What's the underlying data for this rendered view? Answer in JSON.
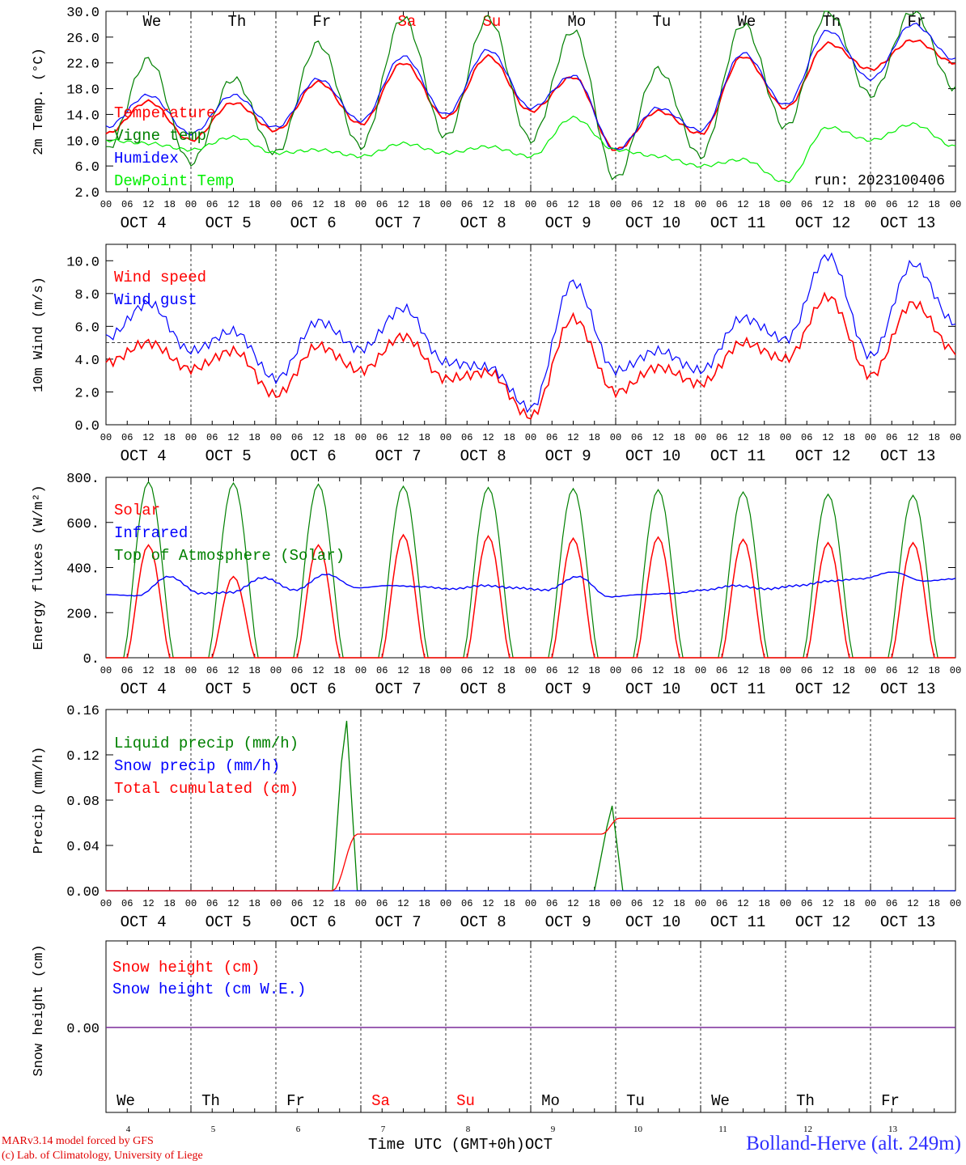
{
  "chart_data": [
    {
      "type": "line",
      "ylabel": "2m Temp. (°C)",
      "ylim": [
        2.0,
        30.0
      ],
      "yticks": [
        "2.0",
        "6.0",
        "10.0",
        "14.0",
        "18.0",
        "22.0",
        "26.0",
        "30.0"
      ],
      "run_label": "run: 2023100406",
      "x_hours": [
        0,
        12,
        24,
        36,
        48,
        60,
        72,
        84,
        96,
        108,
        120,
        132,
        144,
        156,
        168,
        180,
        192,
        204,
        216,
        228,
        240
      ],
      "series": [
        {
          "name": "Temperature",
          "color": "#ff0000",
          "values": [
            11.0,
            16.0,
            10.0,
            15.8,
            11.5,
            19.0,
            12.5,
            22.0,
            13.5,
            23.0,
            14.5,
            19.8,
            8.5,
            14.5,
            11.0,
            23.0,
            15.0,
            25.0,
            21.0,
            25.5,
            22.0
          ]
        },
        {
          "name": "Vigne temp",
          "color": "#008000",
          "values": [
            8.5,
            22.5,
            6.5,
            19.5,
            8.0,
            25.0,
            9.0,
            29.0,
            10.5,
            29.0,
            10.0,
            27.0,
            4.0,
            21.0,
            7.5,
            28.0,
            12.0,
            30.0,
            17.0,
            30.0,
            18.0
          ]
        },
        {
          "name": "Humidex",
          "color": "#0000ff",
          "values": [
            12.0,
            17.0,
            11.0,
            17.0,
            12.0,
            19.5,
            13.0,
            23.0,
            14.0,
            24.0,
            15.0,
            20.0,
            8.5,
            15.0,
            11.5,
            23.5,
            15.5,
            27.0,
            19.5,
            28.0,
            22.5
          ]
        },
        {
          "name": "DewPoint Temp",
          "color": "#00ee00",
          "values": [
            10.0,
            9.5,
            8.5,
            10.5,
            8.0,
            8.5,
            7.5,
            9.5,
            8.0,
            9.0,
            7.5,
            13.5,
            8.5,
            7.5,
            6.0,
            7.0,
            3.5,
            12.0,
            10.0,
            12.5,
            9.0
          ]
        }
      ]
    },
    {
      "type": "line",
      "ylabel": "10m Wind (m/s)",
      "ylim": [
        0.0,
        11.0
      ],
      "yticks": [
        "0.0",
        "2.0",
        "4.0",
        "6.0",
        "8.0",
        "10.0"
      ],
      "reference_line": 5.0,
      "x_hours": [
        0,
        12,
        24,
        36,
        48,
        60,
        72,
        84,
        96,
        108,
        120,
        132,
        144,
        156,
        168,
        180,
        192,
        204,
        216,
        228,
        240
      ],
      "series": [
        {
          "name": "Wind speed",
          "color": "#ff0000",
          "values": [
            3.8,
            5.0,
            3.4,
            4.5,
            1.8,
            4.8,
            3.3,
            5.4,
            2.8,
            3.2,
            0.5,
            6.5,
            2.0,
            3.5,
            2.5,
            5.0,
            4.0,
            7.8,
            3.0,
            7.4,
            4.5
          ]
        },
        {
          "name": "Wind gust",
          "color": "#0000ff",
          "values": [
            5.3,
            7.4,
            4.5,
            5.7,
            2.8,
            6.3,
            4.6,
            7.1,
            3.8,
            3.5,
            1.0,
            8.7,
            3.3,
            4.5,
            3.3,
            6.5,
            5.2,
            10.3,
            4.2,
            9.8,
            6.2
          ]
        }
      ]
    },
    {
      "type": "line",
      "ylabel": "Energy fluxes (W/m²)",
      "ylim": [
        0,
        800
      ],
      "yticks": [
        "0.",
        "200.",
        "400.",
        "600.",
        "800."
      ],
      "daily_peaks": {
        "solar": [
          500,
          360,
          500,
          545,
          540,
          530,
          535,
          525,
          510,
          510
        ],
        "toa": [
          780,
          775,
          770,
          760,
          755,
          750,
          745,
          735,
          725,
          720
        ]
      },
      "series": [
        {
          "name": "Solar",
          "color": "#ff0000"
        },
        {
          "name": "Infrared",
          "color": "#0000ff",
          "values": [
            280,
            275,
            360,
            285,
            290,
            355,
            300,
            370,
            310,
            320,
            315,
            305,
            320,
            310,
            300,
            360,
            270,
            280,
            285,
            300,
            320,
            305,
            320,
            340,
            350,
            380,
            340,
            350
          ]
        },
        {
          "name": "Top of Atmosphere (Solar)",
          "color": "#008000"
        }
      ]
    },
    {
      "type": "line",
      "ylabel": "Precip (mm/h)",
      "ylim": [
        0.0,
        0.16
      ],
      "yticks": [
        "0.00",
        "0.04",
        "0.08",
        "0.12",
        "0.16"
      ],
      "series": [
        {
          "name": "Liquid precip (mm/h)",
          "color": "#008000",
          "events": [
            {
              "start_h": 64,
              "peak_h": 68,
              "end_h": 71,
              "peak": 0.15
            },
            {
              "start_h": 138,
              "peak_h": 143,
              "end_h": 146,
              "peak": 0.075
            }
          ]
        },
        {
          "name": "Snow precip (mm/h)",
          "color": "#0000ff",
          "values": [
            0
          ]
        },
        {
          "name": "Total cumulated (cm)",
          "color": "#ff0000",
          "steps": [
            {
              "h": 64,
              "from": 0.0,
              "to": 0.05,
              "until_h": 71
            },
            {
              "h": 140,
              "from": 0.05,
              "to": 0.064,
              "until_h": 145
            }
          ]
        }
      ]
    },
    {
      "type": "line",
      "ylabel": "Snow height (cm)",
      "yticks": [
        "0.00"
      ],
      "series": [
        {
          "name": "Snow height (cm)",
          "color": "#ff0000",
          "values": [
            0.0
          ]
        },
        {
          "name": "Snow height (cm W.E.)",
          "color": "#0000ff",
          "values": [
            0.0
          ]
        }
      ]
    }
  ],
  "x_axis": {
    "hour_ticks": [
      "00",
      "06",
      "12",
      "18"
    ],
    "end_tick": "00",
    "date_labels": [
      "OCT  4",
      "OCT  5",
      "OCT  6",
      "OCT  7",
      "OCT  8",
      "OCT  9",
      "OCT 10",
      "OCT 11",
      "OCT 12",
      "OCT 13"
    ],
    "weekdays": [
      "We",
      "Th",
      "Fr",
      "Sa",
      "Su",
      "Mo",
      "Tu",
      "We",
      "Th",
      "Fr"
    ],
    "weekend_color": "#ff0000",
    "bottom_day_numbers": [
      "4",
      "5",
      "6",
      "7",
      "8",
      "9",
      "10",
      "11",
      "12",
      "13"
    ]
  },
  "footer": {
    "credit_line1": "MARv3.14 model forced by GFS",
    "credit_line2": "(c) Lab. of Climatology, University of Liege",
    "axis_title": "Time UTC (GMT+0h)",
    "month": "OCT",
    "station": "Bolland-Herve (alt. 249m)"
  }
}
